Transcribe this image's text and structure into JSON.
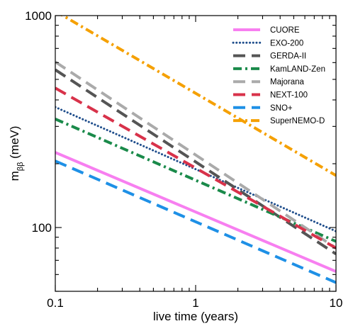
{
  "chart_data": {
    "type": "line",
    "x_scale": "log",
    "y_scale": "log",
    "xlim": [
      0.1,
      10
    ],
    "ylim": [
      50,
      1000
    ],
    "xlabel": "live time (years)",
    "ylabel": {
      "main": "m",
      "sub": "ββ",
      "unit": " (meV)"
    },
    "x_ticks": [
      "0.1",
      "1",
      "10"
    ],
    "y_ticks": [
      "100",
      "1000"
    ],
    "grid": false,
    "legend_position": "top-right",
    "x": [
      0.1,
      10
    ],
    "series": [
      {
        "name": "CUORE",
        "values": [
          226,
          62
        ],
        "color": "#f77ff0",
        "style": "solid"
      },
      {
        "name": "EXO-200",
        "values": [
          370,
          96
        ],
        "color": "#1f4e8c",
        "style": "dotted"
      },
      {
        "name": "GERDA-II",
        "values": [
          555,
          75
        ],
        "color": "#555555",
        "style": "dashed"
      },
      {
        "name": "KamLAND-Zen",
        "values": [
          325,
          86
        ],
        "color": "#1a8a4a",
        "style": "dashdot"
      },
      {
        "name": "Majorana",
        "values": [
          605,
          80
        ],
        "color": "#aaaaaa",
        "style": "dashed"
      },
      {
        "name": "NEXT-100",
        "values": [
          455,
          80
        ],
        "color": "#d8324a",
        "style": "dashed"
      },
      {
        "name": "SNO+",
        "values": [
          206,
          55
        ],
        "color": "#1e90e6",
        "style": "dashed"
      },
      {
        "name": "SuperNEMO-D",
        "values": [
          1050,
          176
        ],
        "color": "#f5a000",
        "style": "dashdot"
      }
    ]
  }
}
